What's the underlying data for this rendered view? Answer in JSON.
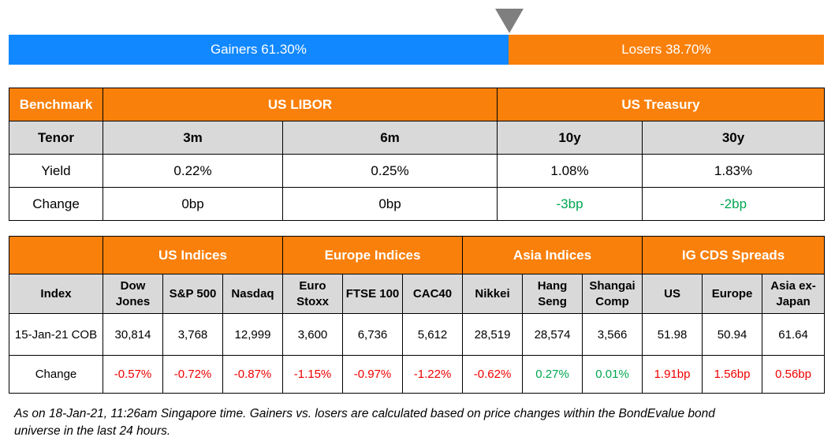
{
  "gainers_losers": {
    "gainers_label": "Gainers 61.30%",
    "losers_label": "Losers 38.70%",
    "gainers_fraction": 0.613,
    "colors": {
      "gainers": "#1188ff",
      "losers": "#f9800b",
      "marker": "#7f7f7f"
    }
  },
  "rates": {
    "benchmark_header": "Benchmark",
    "libor_header": "US LIBOR",
    "treasury_header": "US Treasury",
    "tenor_label": "Tenor",
    "tenors": [
      "3m",
      "6m",
      "10y",
      "30y"
    ],
    "yield_label": "Yield",
    "yields": [
      "0.22%",
      "0.25%",
      "1.08%",
      "1.83%"
    ],
    "change_label": "Change",
    "changes": [
      "0bp",
      "0bp",
      "-3bp",
      "-2bp"
    ]
  },
  "indices": {
    "groups": [
      "US Indices",
      "Europe Indices",
      "Asia Indices",
      "IG CDS Spreads"
    ],
    "index_label": "Index",
    "columns": [
      [
        "Dow",
        "Jones"
      ],
      [
        "S&P 500"
      ],
      [
        "Nasdaq"
      ],
      [
        "Euro",
        "Stoxx"
      ],
      [
        "FTSE 100"
      ],
      [
        "CAC40"
      ],
      [
        "Nikkei"
      ],
      [
        "Hang",
        "Seng"
      ],
      [
        "Shangai",
        "Comp"
      ],
      [
        "US"
      ],
      [
        "Europe"
      ],
      [
        "Asia ex-",
        "Japan"
      ]
    ],
    "date_label": "15-Jan-21 COB",
    "values": [
      "30,814",
      "3,768",
      "12,999",
      "3,600",
      "6,736",
      "5,612",
      "28,519",
      "28,574",
      "3,566",
      "51.98",
      "50.94",
      "61.64"
    ],
    "change_label": "Change",
    "changes": [
      "-0.57%",
      "-0.72%",
      "-0.87%",
      "-1.15%",
      "-0.97%",
      "-1.22%",
      "-0.62%",
      "0.27%",
      "0.01%",
      "1.91bp",
      "1.56bp",
      "0.56bp"
    ],
    "change_colors": [
      "neg",
      "neg",
      "neg",
      "neg",
      "neg",
      "neg",
      "neg",
      "pos",
      "pos",
      "neg",
      "neg",
      "neg"
    ]
  },
  "footnote": {
    "line1": "As on 18-Jan-21, 11:26am Singapore time. Gainers vs. losers are calculated based on price changes within the BondEvalue bond",
    "line2": "universe in the last 24 hours."
  }
}
